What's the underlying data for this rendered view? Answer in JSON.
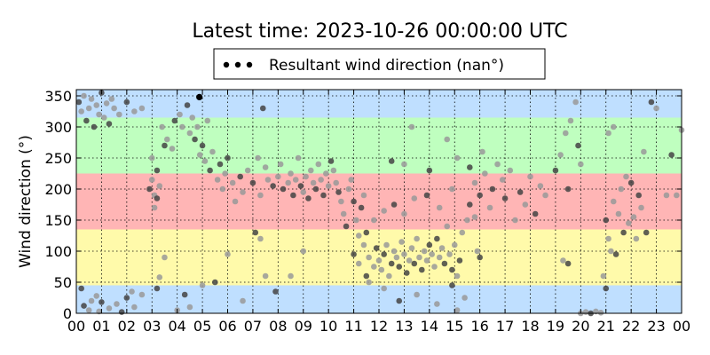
{
  "chart_data": {
    "type": "scatter",
    "title": "Latest time: 2023-10-26 00:00:00 UTC",
    "xlabel": "",
    "ylabel": "Wind direction (°)",
    "xlim": [
      0,
      24
    ],
    "ylim": [
      0,
      360
    ],
    "x_ticks": [
      "00",
      "01",
      "02",
      "03",
      "04",
      "05",
      "06",
      "07",
      "08",
      "09",
      "10",
      "11",
      "12",
      "13",
      "14",
      "15",
      "16",
      "17",
      "18",
      "19",
      "20",
      "21",
      "22",
      "23",
      "00"
    ],
    "y_ticks": [
      0,
      50,
      100,
      150,
      200,
      250,
      300,
      350
    ],
    "grid": true,
    "legend": {
      "placement": "top-center",
      "label": "Resultant wind direction (nan°)"
    },
    "bands": [
      {
        "from": 0,
        "to": 45,
        "color": "#bfdfff"
      },
      {
        "from": 45,
        "to": 135,
        "color": "#fffaaa"
      },
      {
        "from": 135,
        "to": 225,
        "color": "#ffb5b5"
      },
      {
        "from": 225,
        "to": 315,
        "color": "#bfffbf"
      },
      {
        "from": 315,
        "to": 360,
        "color": "#bfdfff"
      }
    ],
    "colors": {
      "point_dark": "#444444",
      "point_light": "#999999",
      "latest_point": "#000000"
    },
    "latest_point": {
      "x": 4.88,
      "y": 348
    },
    "series": [
      {
        "values": [
          [
            0.1,
            340
          ],
          [
            0.2,
            325
          ],
          [
            0.3,
            350
          ],
          [
            0.4,
            310
          ],
          [
            0.5,
            330
          ],
          [
            0.6,
            345
          ],
          [
            0.7,
            300
          ],
          [
            0.8,
            335
          ],
          [
            0.9,
            320
          ],
          [
            1.0,
            355
          ],
          [
            1.1,
            315
          ],
          [
            1.2,
            338
          ],
          [
            1.3,
            305
          ],
          [
            1.4,
            345
          ],
          [
            1.5,
            330
          ],
          [
            0.3,
            12
          ],
          [
            0.5,
            5
          ],
          [
            0.8,
            28
          ],
          [
            1.0,
            18
          ],
          [
            1.3,
            8
          ],
          [
            1.6,
            15
          ],
          [
            2.0,
            25
          ],
          [
            2.3,
            10
          ],
          [
            2.6,
            30
          ],
          [
            0.2,
            40
          ],
          [
            0.6,
            20
          ],
          [
            0.9,
            3
          ],
          [
            1.8,
            2
          ],
          [
            2.2,
            35
          ],
          [
            1.7,
            320
          ],
          [
            2.0,
            340
          ],
          [
            2.3,
            325
          ],
          [
            2.6,
            330
          ],
          [
            2.9,
            200
          ],
          [
            3.0,
            215
          ],
          [
            3.1,
            170
          ],
          [
            3.2,
            230
          ],
          [
            3.1,
            190
          ],
          [
            3.3,
            205
          ],
          [
            3.2,
            185
          ],
          [
            3.0,
            250
          ],
          [
            3.4,
            300
          ],
          [
            3.5,
            270
          ],
          [
            3.6,
            280
          ],
          [
            3.8,
            265
          ],
          [
            3.9,
            310
          ],
          [
            4.1,
            320
          ],
          [
            4.2,
            300
          ],
          [
            4.4,
            335
          ],
          [
            4.5,
            290
          ],
          [
            4.6,
            315
          ],
          [
            4.7,
            280
          ],
          [
            4.8,
            300
          ],
          [
            4.9,
            255
          ],
          [
            5.0,
            270
          ],
          [
            5.1,
            245
          ],
          [
            5.2,
            310
          ],
          [
            5.3,
            230
          ],
          [
            5.4,
            260
          ],
          [
            5.6,
            215
          ],
          [
            5.7,
            240
          ],
          [
            5.8,
            200
          ],
          [
            5.9,
            225
          ],
          [
            6.0,
            250
          ],
          [
            6.2,
            210
          ],
          [
            6.3,
            180
          ],
          [
            6.5,
            220
          ],
          [
            6.6,
            195
          ],
          [
            6.8,
            230
          ],
          [
            7.0,
            210
          ],
          [
            7.2,
            250
          ],
          [
            7.3,
            190
          ],
          [
            7.4,
            330
          ],
          [
            7.5,
            235
          ],
          [
            7.6,
            215
          ],
          [
            7.8,
            205
          ],
          [
            8.0,
            220
          ],
          [
            8.1,
            240
          ],
          [
            8.2,
            200
          ],
          [
            8.4,
            210
          ],
          [
            8.5,
            225
          ],
          [
            8.6,
            190
          ],
          [
            8.7,
            215
          ],
          [
            8.8,
            250
          ],
          [
            8.9,
            205
          ],
          [
            9.0,
            195
          ],
          [
            9.1,
            220
          ],
          [
            9.2,
            185
          ],
          [
            9.3,
            230
          ],
          [
            9.4,
            210
          ],
          [
            9.5,
            200
          ],
          [
            9.6,
            240
          ],
          [
            9.7,
            215
          ],
          [
            9.8,
            190
          ],
          [
            9.9,
            225
          ],
          [
            10.0,
            205
          ],
          [
            10.1,
            245
          ],
          [
            10.2,
            230
          ],
          [
            10.3,
            210
          ],
          [
            10.4,
            195
          ],
          [
            10.5,
            180
          ],
          [
            10.6,
            160
          ],
          [
            10.7,
            140
          ],
          [
            10.8,
            200
          ],
          [
            10.9,
            215
          ],
          [
            11.0,
            180
          ],
          [
            11.1,
            150
          ],
          [
            11.2,
            125
          ],
          [
            11.3,
            170
          ],
          [
            11.4,
            190
          ],
          [
            3.5,
            90
          ],
          [
            3.2,
            40
          ],
          [
            3.3,
            58
          ],
          [
            4.0,
            5
          ],
          [
            4.3,
            30
          ],
          [
            4.5,
            10
          ],
          [
            5.0,
            45
          ],
          [
            5.5,
            50
          ],
          [
            6.0,
            95
          ],
          [
            6.6,
            20
          ],
          [
            7.1,
            130
          ],
          [
            7.3,
            120
          ],
          [
            7.5,
            60
          ],
          [
            7.9,
            35
          ],
          [
            8.5,
            60
          ],
          [
            9.0,
            100
          ],
          [
            11.0,
            95
          ],
          [
            11.2,
            80
          ],
          [
            11.4,
            110
          ],
          [
            11.5,
            60
          ],
          [
            11.6,
            90
          ],
          [
            11.8,
            75
          ],
          [
            11.9,
            105
          ],
          [
            12.0,
            85
          ],
          [
            12.1,
            70
          ],
          [
            12.2,
            95
          ],
          [
            12.3,
            110
          ],
          [
            12.4,
            60
          ],
          [
            12.5,
            80
          ],
          [
            12.6,
            100
          ],
          [
            12.7,
            90
          ],
          [
            12.8,
            75
          ],
          [
            12.9,
            115
          ],
          [
            13.0,
            95
          ],
          [
            13.1,
            65
          ],
          [
            13.2,
            85
          ],
          [
            13.3,
            105
          ],
          [
            13.4,
            80
          ],
          [
            13.5,
            120
          ],
          [
            13.6,
            90
          ],
          [
            13.7,
            70
          ],
          [
            13.8,
            100
          ],
          [
            13.9,
            85
          ],
          [
            14.0,
            110
          ],
          [
            14.1,
            95
          ],
          [
            14.2,
            75
          ],
          [
            14.3,
            120
          ],
          [
            14.4,
            90
          ],
          [
            14.5,
            105
          ],
          [
            14.6,
            80
          ],
          [
            14.7,
            140
          ],
          [
            14.8,
            95
          ],
          [
            14.9,
            70
          ],
          [
            15.0,
            110
          ],
          [
            15.1,
            60
          ],
          [
            15.2,
            85
          ],
          [
            15.3,
            130
          ],
          [
            15.5,
            150
          ],
          [
            15.6,
            175
          ],
          [
            15.8,
            155
          ],
          [
            15.9,
            100
          ],
          [
            16.0,
            90
          ],
          [
            11.6,
            50
          ],
          [
            12.2,
            40
          ],
          [
            12.8,
            20
          ],
          [
            13.5,
            30
          ],
          [
            14.3,
            15
          ],
          [
            14.9,
            45
          ],
          [
            15.1,
            5
          ],
          [
            15.4,
            25
          ],
          [
            11.5,
            130
          ],
          [
            11.8,
            150
          ],
          [
            12.2,
            165
          ],
          [
            12.6,
            175
          ],
          [
            13.0,
            160
          ],
          [
            13.4,
            185
          ],
          [
            13.9,
            190
          ],
          [
            14.4,
            170
          ],
          [
            14.9,
            200
          ],
          [
            12.5,
            245
          ],
          [
            13.0,
            240
          ],
          [
            13.3,
            300
          ],
          [
            14.0,
            230
          ],
          [
            14.7,
            280
          ],
          [
            15.1,
            250
          ],
          [
            15.6,
            235
          ],
          [
            16.1,
            260
          ],
          [
            15.8,
            210
          ],
          [
            16.0,
            190
          ],
          [
            16.2,
            225
          ],
          [
            16.4,
            170
          ],
          [
            16.5,
            200
          ],
          [
            16.7,
            240
          ],
          [
            16.9,
            215
          ],
          [
            17.0,
            185
          ],
          [
            17.2,
            230
          ],
          [
            17.4,
            150
          ],
          [
            17.6,
            195
          ],
          [
            17.8,
            175
          ],
          [
            18.0,
            220
          ],
          [
            18.2,
            160
          ],
          [
            18.4,
            205
          ],
          [
            18.6,
            190
          ],
          [
            19.0,
            230
          ],
          [
            19.2,
            255
          ],
          [
            19.4,
            290
          ],
          [
            19.5,
            200
          ],
          [
            19.6,
            310
          ],
          [
            19.8,
            340
          ],
          [
            19.9,
            270
          ],
          [
            20.0,
            240
          ],
          [
            19.3,
            85
          ],
          [
            19.5,
            80
          ],
          [
            20.0,
            0
          ],
          [
            20.2,
            2
          ],
          [
            20.4,
            0
          ],
          [
            20.6,
            3
          ],
          [
            20.8,
            1
          ],
          [
            21.0,
            40
          ],
          [
            20.9,
            60
          ],
          [
            21.1,
            120
          ],
          [
            21.0,
            150
          ],
          [
            21.2,
            100
          ],
          [
            21.3,
            180
          ],
          [
            21.4,
            95
          ],
          [
            21.5,
            160
          ],
          [
            21.6,
            200
          ],
          [
            21.7,
            130
          ],
          [
            21.8,
            220
          ],
          [
            21.9,
            145
          ],
          [
            22.0,
            210
          ],
          [
            22.1,
            155
          ],
          [
            22.2,
            120
          ],
          [
            22.3,
            190
          ],
          [
            22.4,
            170
          ],
          [
            22.5,
            260
          ],
          [
            22.6,
            130
          ],
          [
            21.1,
            290
          ],
          [
            21.3,
            300
          ],
          [
            22.8,
            340
          ],
          [
            23.0,
            330
          ],
          [
            23.4,
            190
          ],
          [
            23.6,
            255
          ],
          [
            23.8,
            190
          ],
          [
            24.0,
            295
          ]
        ]
      }
    ]
  }
}
